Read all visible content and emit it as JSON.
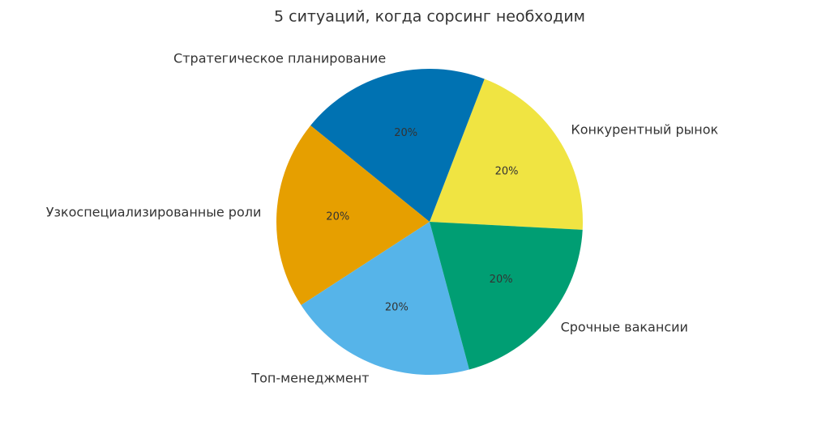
{
  "chart_data": {
    "type": "pie",
    "title": "5 ситуаций, когда сорсинг необходим",
    "categories": [
      "Конкурентный рынок",
      "Стратегическое планирование",
      "Узкоспециализированные роли",
      "Топ-менеджмент",
      "Срочные вакансии"
    ],
    "values": [
      20,
      20,
      20,
      20,
      20
    ],
    "value_labels": [
      "20%",
      "20%",
      "20%",
      "20%",
      "20%"
    ],
    "colors": [
      "#f0e442",
      "#0072b2",
      "#e69f00",
      "#56b4e9",
      "#009e73"
    ]
  }
}
